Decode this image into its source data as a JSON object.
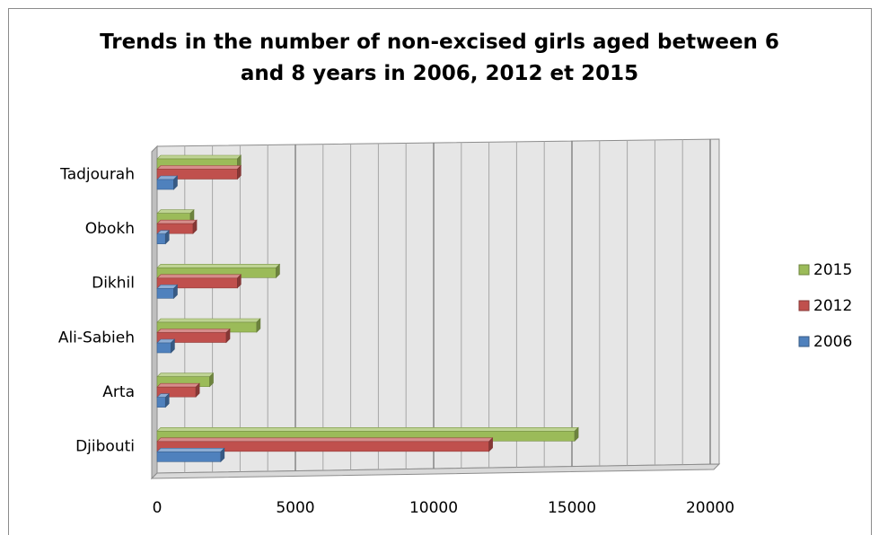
{
  "chart_data": {
    "type": "bar",
    "orientation": "horizontal",
    "title_lines": [
      "Trends in the number of non-excised girls aged between 6",
      "and 8 years in 2006, 2012 et 2015"
    ],
    "categories": [
      "Djibouti",
      "Arta",
      "Ali-Sabieh",
      "Dikhil",
      "Obokh",
      "Tadjourah"
    ],
    "series": [
      {
        "name": "2006",
        "color": "#4f81bd",
        "values": [
          2300,
          300,
          500,
          600,
          300,
          600
        ]
      },
      {
        "name": "2012",
        "color": "#c0504d",
        "values": [
          12000,
          1400,
          2500,
          2900,
          1300,
          2900
        ]
      },
      {
        "name": "2015",
        "color": "#9bbb59",
        "values": [
          15100,
          1900,
          3600,
          4300,
          1200,
          2900
        ]
      }
    ],
    "xlim": [
      0,
      20000
    ],
    "x_ticks": [
      0,
      5000,
      10000,
      15000,
      20000
    ],
    "grid": true,
    "legend": {
      "position": "right",
      "order": [
        "2015",
        "2012",
        "2006"
      ]
    }
  }
}
